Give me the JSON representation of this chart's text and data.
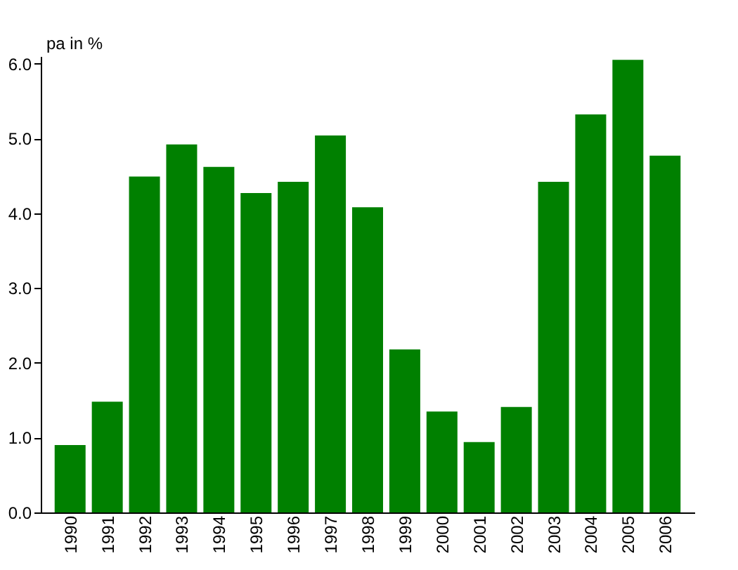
{
  "chart_data": {
    "type": "bar",
    "ylabel": "pa in %",
    "categories": [
      "1990",
      "1991",
      "1992",
      "1993",
      "1994",
      "1995",
      "1996",
      "1997",
      "1998",
      "1999",
      "2000",
      "2001",
      "2002",
      "2003",
      "2004",
      "2005",
      "2006"
    ],
    "values": [
      0.9,
      1.48,
      4.49,
      4.92,
      4.62,
      4.27,
      4.42,
      5.04,
      4.08,
      2.18,
      1.35,
      0.94,
      1.41,
      4.42,
      5.32,
      6.05,
      4.77
    ],
    "color": "#008000",
    "ylim": [
      0,
      6.1
    ],
    "yticks": [
      {
        "value": 0,
        "label": "0.0"
      },
      {
        "value": 1,
        "label": "1.0"
      },
      {
        "value": 2,
        "label": "2.0"
      },
      {
        "value": 3,
        "label": "3.0"
      },
      {
        "value": 4,
        "label": "4.0"
      },
      {
        "value": 5,
        "label": "5.0"
      },
      {
        "value": 6,
        "label": "6.0"
      }
    ],
    "grid": false
  }
}
